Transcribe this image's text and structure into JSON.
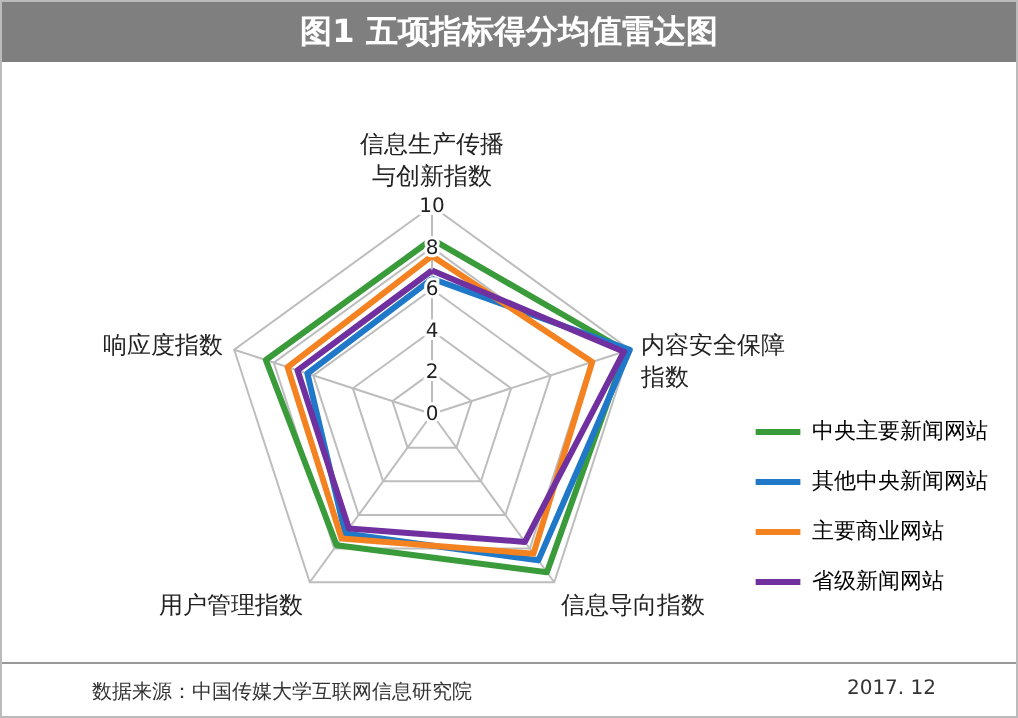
{
  "chart_data": {
    "type": "radar",
    "title": "图1  五项指标得分均值雷达图",
    "categories": [
      "信息生产传播与创新指数",
      "内容安全保障指数",
      "信息导向指数",
      "用户管理指数",
      "响应度指数"
    ],
    "series": [
      {
        "name": "中央主要新闻网站",
        "color": "#3a9b3a",
        "values": [
          8.4,
          9.8,
          9.4,
          7.8,
          8.4
        ]
      },
      {
        "name": "其他中央新闻网站",
        "color": "#1f78c8",
        "values": [
          6.5,
          10,
          8.7,
          7.1,
          6.3
        ]
      },
      {
        "name": "主要商业网站",
        "color": "#f58220",
        "values": [
          7.6,
          8.1,
          8.3,
          7.4,
          7.3
        ]
      },
      {
        "name": "省级新闻网站",
        "color": "#7030a0",
        "values": [
          6.9,
          9.7,
          7.6,
          6.8,
          6.8
        ]
      }
    ],
    "ylim": [
      0,
      10
    ],
    "yticks": [
      0,
      2,
      4,
      6,
      8,
      10
    ],
    "grid": true,
    "legend": "right",
    "marker": "none",
    "line_style": "solid",
    "annotations": [
      "数据来源：中国传媒大学互联网信息研究院",
      "2017. 12"
    ]
  }
}
